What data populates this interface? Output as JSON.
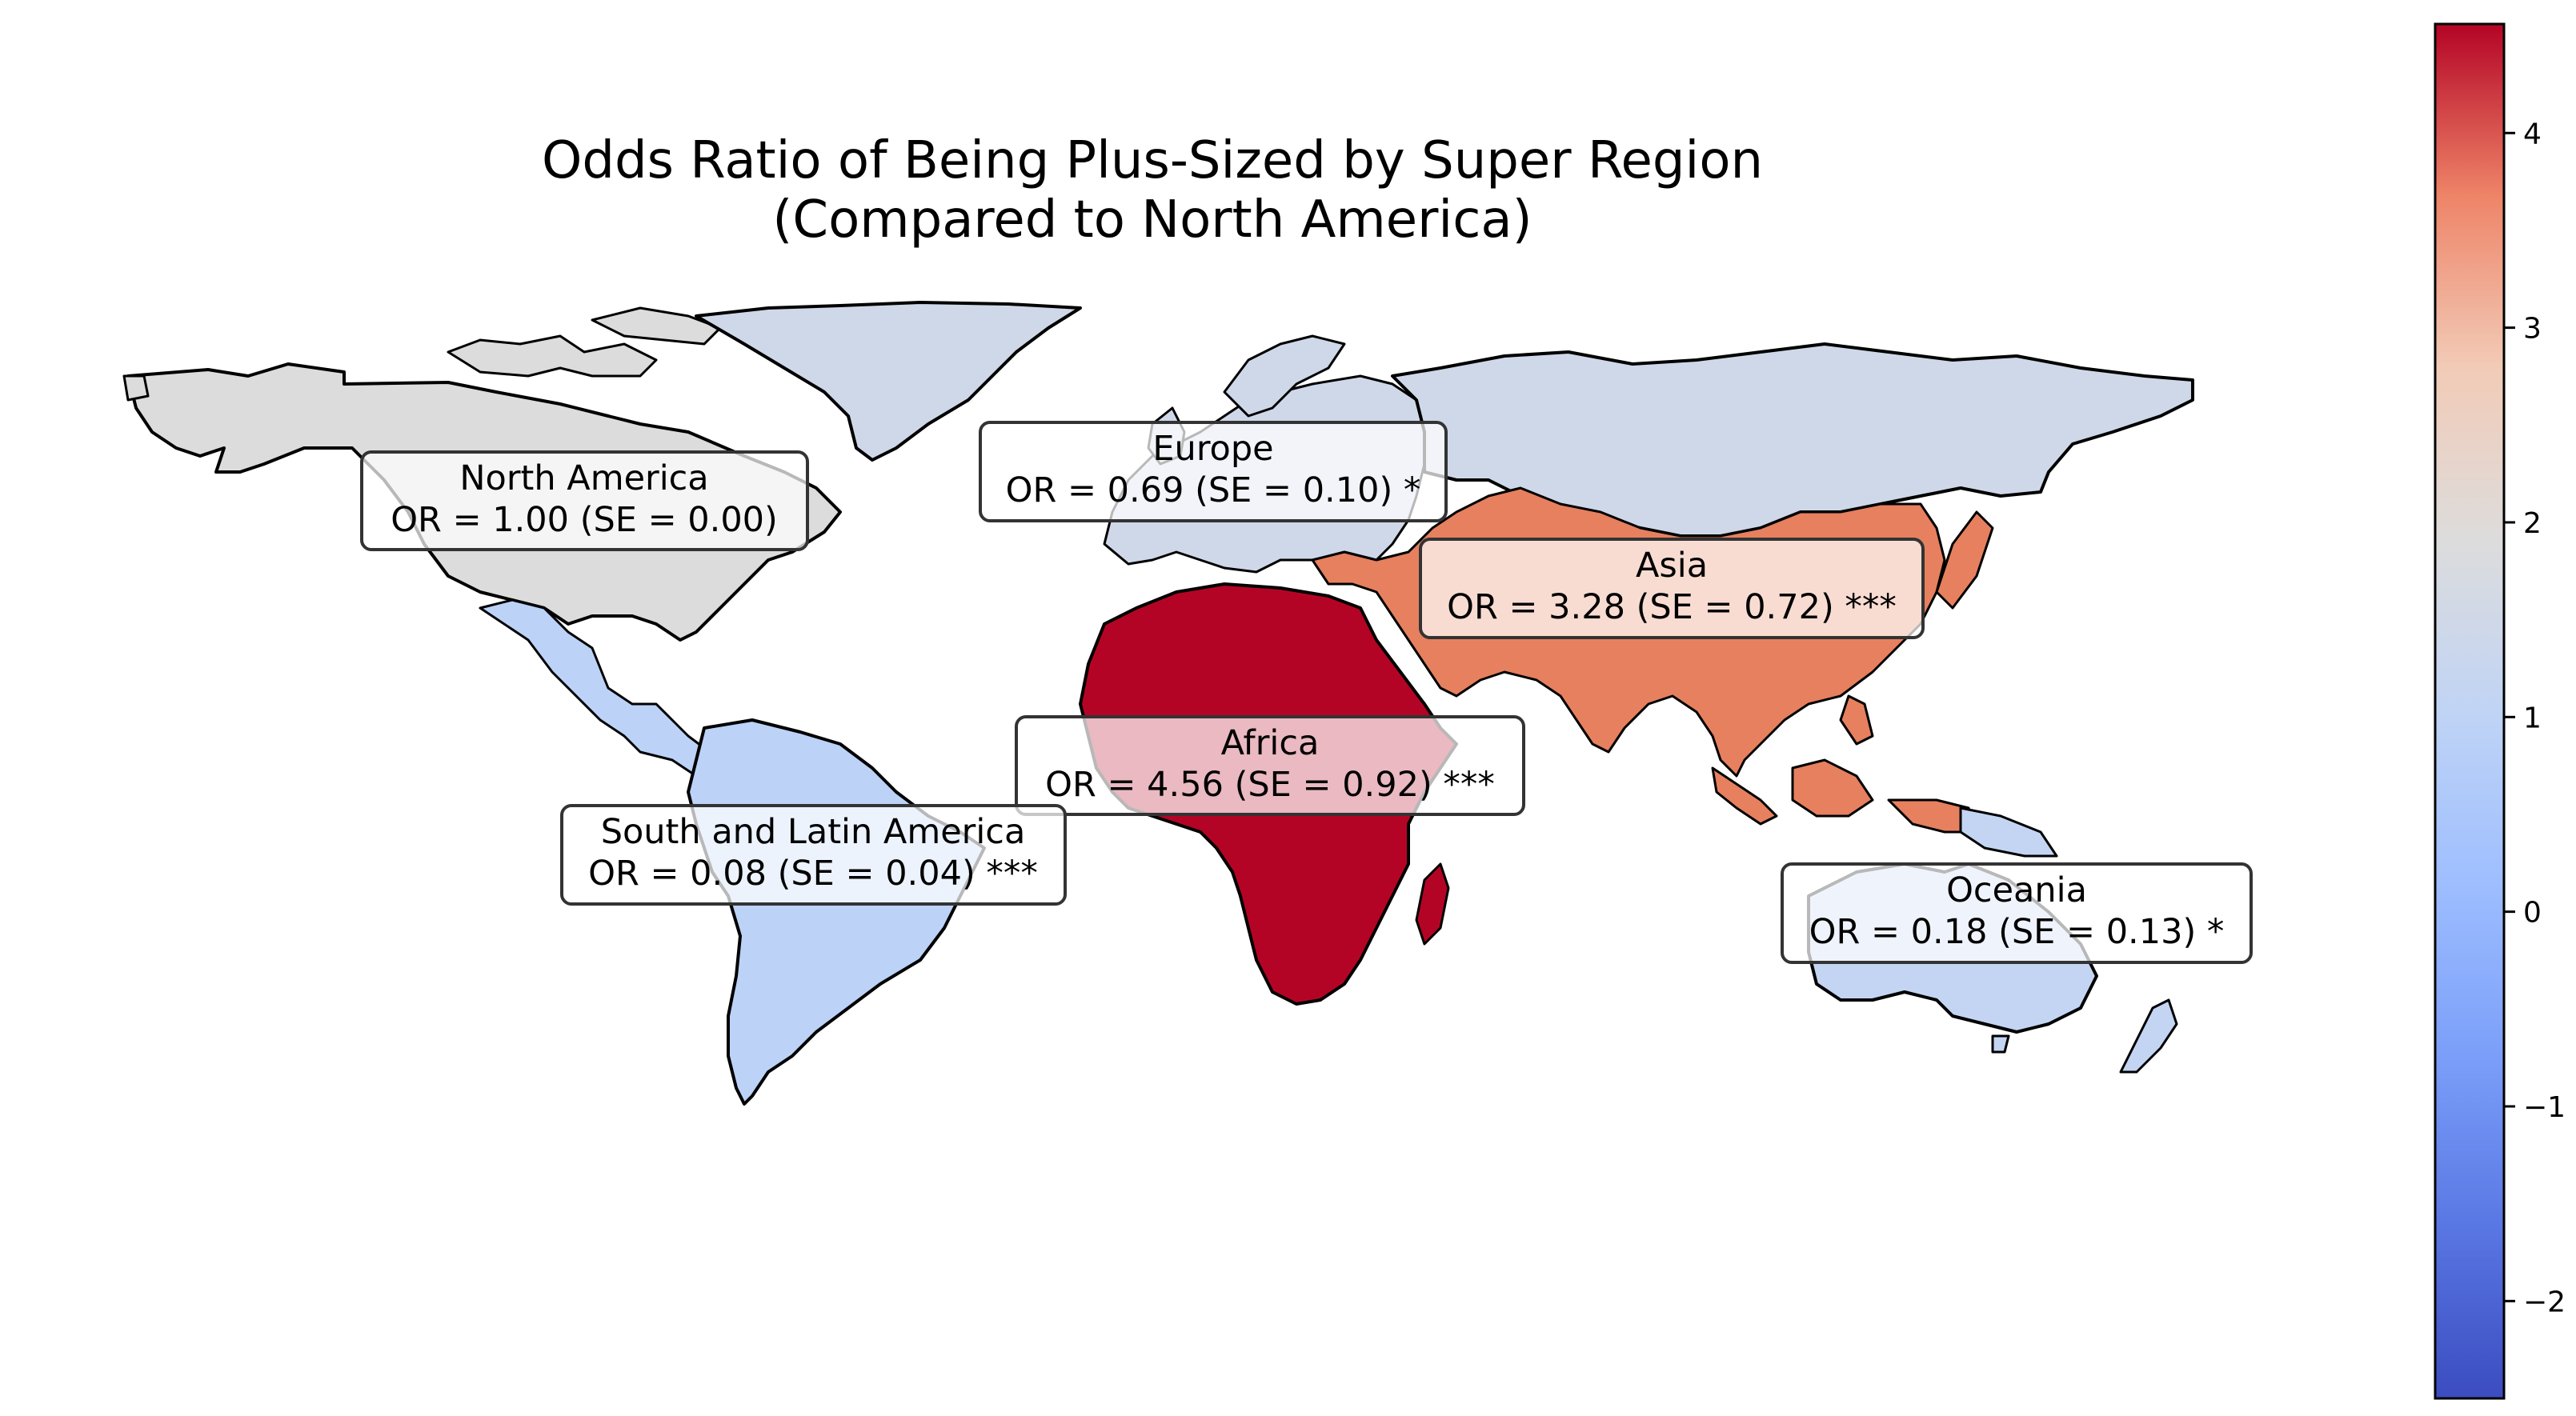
{
  "title": {
    "line1": "Odds Ratio of Being Plus-Sized by Super Region",
    "line2": "(Compared to North America)"
  },
  "colorbar": {
    "colormap": "coolwarm",
    "range": [
      -2.5,
      4.56
    ],
    "ticks": [
      "−2",
      "−1",
      "0",
      "1",
      "2",
      "3",
      "4"
    ],
    "tick_values": [
      -2,
      -1,
      0,
      1,
      2,
      3,
      4
    ]
  },
  "regions": [
    {
      "key": "north_america",
      "name": "North America",
      "stats": "OR = 1.00 (SE = 0.00)",
      "value": 1.0,
      "color": "#dcdcdc"
    },
    {
      "key": "europe",
      "name": "Europe",
      "stats": "OR = 0.69 (SE = 0.10) *",
      "value": 0.69,
      "color": "#cfd8e8"
    },
    {
      "key": "asia",
      "name": "Asia",
      "stats": "OR = 3.28 (SE = 0.72) ***",
      "value": 3.28,
      "color": "#e6805f"
    },
    {
      "key": "africa",
      "name": "Africa",
      "stats": "OR = 4.56 (SE = 0.92) ***",
      "value": 4.56,
      "color": "#b40426"
    },
    {
      "key": "latam",
      "name": "South and Latin America",
      "stats": "OR = 0.08 (SE = 0.04) ***",
      "value": 0.08,
      "color": "#bcd2f7"
    },
    {
      "key": "oceania",
      "name": "Oceania",
      "stats": "OR = 0.18 (SE = 0.13) *",
      "value": 0.18,
      "color": "#c4d5f3"
    }
  ],
  "russia_color": "#cfd8e8"
}
